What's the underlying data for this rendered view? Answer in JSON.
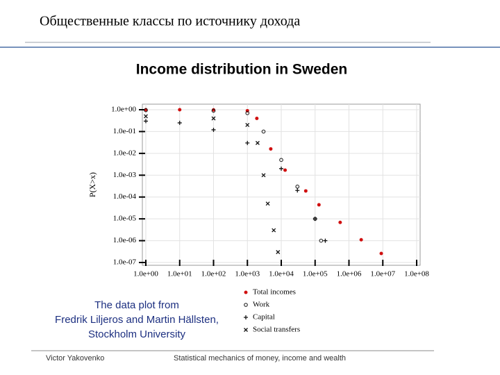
{
  "slide": {
    "header": "Общественные классы по источнику дохода",
    "credit": [
      "The data plot from",
      "Fredrik Liljeros and Martin Hällsten,",
      "Stockholm University"
    ],
    "footer_left": "Victor Yakovenko",
    "footer_right": "Statistical mechanics of money, income and wealth"
  },
  "chart_data": {
    "type": "scatter",
    "title": "Income distribution in Sweden",
    "ylabel": "P(X>x)",
    "xscale": "log",
    "yscale": "log",
    "grid": true,
    "xlim": [
      1,
      100000000
    ],
    "ylim": [
      1e-07,
      1
    ],
    "xticks": [
      {
        "value": 1,
        "label": "1.0e+00"
      },
      {
        "value": 10,
        "label": "1.0e+01"
      },
      {
        "value": 100,
        "label": "1.0e+02"
      },
      {
        "value": 1000,
        "label": "1.0e+03"
      },
      {
        "value": 10000,
        "label": "1.0e+04"
      },
      {
        "value": 100000,
        "label": "1.0e+05"
      },
      {
        "value": 1000000,
        "label": "1.0e+06"
      },
      {
        "value": 10000000,
        "label": "1.0e+07"
      },
      {
        "value": 100000000,
        "label": "1.0e+08"
      }
    ],
    "yticks": [
      {
        "value": 1,
        "label": "1.0e+00"
      },
      {
        "value": 0.1,
        "label": "1.0e-01"
      },
      {
        "value": 0.01,
        "label": "1.0e-02"
      },
      {
        "value": 0.001,
        "label": "1.0e-03"
      },
      {
        "value": 0.0001,
        "label": "1.0e-04"
      },
      {
        "value": 1e-05,
        "label": "1.0e-05"
      },
      {
        "value": 1e-06,
        "label": "1.0e-06"
      },
      {
        "value": 1e-07,
        "label": "1.0e-07"
      }
    ],
    "series": [
      {
        "name": "Total incomes",
        "color": "#d01010",
        "marker": "dot",
        "x": [
          1,
          10,
          100,
          1000,
          1900,
          4900,
          13000,
          53000,
          130000,
          550000,
          2300000,
          9000000
        ],
        "values": [
          1,
          1,
          0.98,
          0.9,
          0.4,
          0.016,
          0.0017,
          0.00019,
          4.4e-05,
          6.9e-06,
          1.1e-06,
          2.6e-07
        ]
      },
      {
        "name": "Work",
        "color": "#111111",
        "marker": "circle",
        "x": [
          1,
          100,
          1000,
          3000,
          10000,
          30000,
          100000,
          150000
        ],
        "values": [
          0.95,
          0.9,
          0.7,
          0.1,
          0.005,
          0.0003,
          1e-05,
          1e-06
        ]
      },
      {
        "name": "Capital",
        "color": "#111111",
        "marker": "plus",
        "x": [
          1,
          10,
          100,
          1000,
          10000,
          30000,
          100000,
          200000
        ],
        "values": [
          0.3,
          0.25,
          0.12,
          0.03,
          0.002,
          0.0002,
          1e-05,
          1e-06
        ]
      },
      {
        "name": "Social transfers",
        "color": "#111111",
        "marker": "cross",
        "x": [
          1,
          100,
          1000,
          2000,
          3000,
          4000,
          6000,
          8000
        ],
        "values": [
          0.5,
          0.4,
          0.2,
          0.03,
          0.001,
          5e-05,
          3e-06,
          3e-07
        ]
      }
    ]
  }
}
